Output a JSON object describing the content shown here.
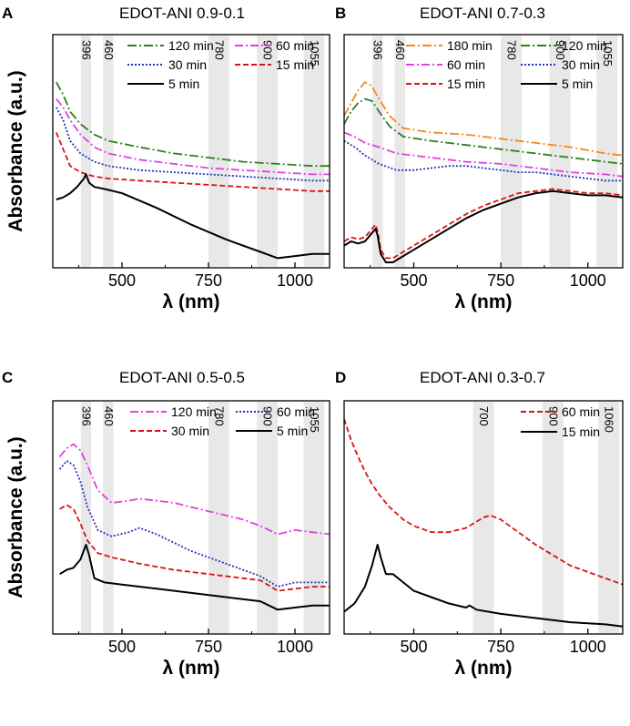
{
  "chart_data": [
    {
      "id": "A",
      "letter": "A",
      "title": "EDOT-ANI 0.9-0.1",
      "type": "line",
      "xlabel": "λ (nm)",
      "ylabel": "Absorbance (a.u.)",
      "xlim": [
        300,
        1100
      ],
      "ylim": [
        0,
        1
      ],
      "xticks": [
        500,
        750,
        1000
      ],
      "xtick_labels": [
        "500",
        "750",
        "1000"
      ],
      "bands": [
        {
          "label": "396",
          "x": 396,
          "w": 30
        },
        {
          "label": "460",
          "x": 460,
          "w": 30
        },
        {
          "label": "780",
          "x": 780,
          "w": 60
        },
        {
          "label": "900",
          "x": 920,
          "w": 60
        },
        {
          "label": "1055",
          "x": 1055,
          "w": 60
        }
      ],
      "series": [
        {
          "name": "120 min",
          "color": "#2e7d1e",
          "dash": "10,3,2,3",
          "x": [
            310,
            330,
            350,
            380,
            420,
            460,
            550,
            650,
            750,
            850,
            950,
            1050,
            1100
          ],
          "y": [
            0.86,
            0.8,
            0.72,
            0.66,
            0.61,
            0.58,
            0.55,
            0.52,
            0.5,
            0.48,
            0.47,
            0.46,
            0.46
          ]
        },
        {
          "name": "60 min",
          "color": "#e040e0",
          "dash": "9,3,2,3",
          "x": [
            310,
            330,
            350,
            380,
            420,
            460,
            550,
            650,
            750,
            850,
            950,
            1050,
            1100
          ],
          "y": [
            0.78,
            0.74,
            0.68,
            0.61,
            0.55,
            0.52,
            0.49,
            0.47,
            0.45,
            0.44,
            0.43,
            0.42,
            0.42
          ]
        },
        {
          "name": "30 min",
          "color": "#2233bb",
          "dash": "2,2",
          "x": [
            310,
            330,
            350,
            380,
            420,
            460,
            550,
            650,
            750,
            850,
            950,
            1050,
            1100
          ],
          "y": [
            0.74,
            0.68,
            0.58,
            0.52,
            0.48,
            0.46,
            0.44,
            0.43,
            0.42,
            0.41,
            0.4,
            0.39,
            0.39
          ]
        },
        {
          "name": "15 min",
          "color": "#dd1111",
          "dash": "6,3",
          "x": [
            310,
            330,
            350,
            380,
            420,
            460,
            550,
            650,
            750,
            850,
            950,
            1050,
            1100
          ],
          "y": [
            0.62,
            0.54,
            0.46,
            0.43,
            0.41,
            0.4,
            0.39,
            0.38,
            0.37,
            0.36,
            0.35,
            0.34,
            0.34
          ]
        },
        {
          "name": "5 min",
          "color": "#000000",
          "dash": "",
          "x": [
            310,
            330,
            350,
            370,
            390,
            396,
            405,
            420,
            450,
            500,
            600,
            700,
            800,
            900,
            950,
            1000,
            1050,
            1100
          ],
          "y": [
            0.3,
            0.31,
            0.33,
            0.36,
            0.4,
            0.42,
            0.38,
            0.36,
            0.35,
            0.33,
            0.26,
            0.18,
            0.11,
            0.05,
            0.02,
            0.03,
            0.04,
            0.04
          ]
        }
      ],
      "legend": [
        {
          "name": "120 min",
          "row": 0,
          "col": 0
        },
        {
          "name": "60 min",
          "row": 0,
          "col": 1
        },
        {
          "name": "30 min",
          "row": 1,
          "col": 0
        },
        {
          "name": "15 min",
          "row": 1,
          "col": 1
        },
        {
          "name": "5 min",
          "row": 2,
          "col": 0
        }
      ]
    },
    {
      "id": "B",
      "letter": "B",
      "title": "EDOT-ANI 0.7-0.3",
      "type": "line",
      "xlabel": "λ (nm)",
      "ylabel": "",
      "xlim": [
        300,
        1100
      ],
      "ylim": [
        0,
        1
      ],
      "xticks": [
        500,
        750,
        1000
      ],
      "xtick_labels": [
        "500",
        "750",
        "1000"
      ],
      "bands": [
        {
          "label": "396",
          "x": 396,
          "w": 30
        },
        {
          "label": "460",
          "x": 460,
          "w": 30
        },
        {
          "label": "780",
          "x": 780,
          "w": 60
        },
        {
          "label": "900",
          "x": 920,
          "w": 60
        },
        {
          "label": "1055",
          "x": 1055,
          "w": 60
        }
      ],
      "series": [
        {
          "name": "180 min",
          "color": "#f08a1a",
          "dash": "10,3,2,3",
          "x": [
            300,
            320,
            340,
            360,
            380,
            400,
            430,
            470,
            550,
            650,
            750,
            850,
            950,
            1050,
            1100
          ],
          "y": [
            0.7,
            0.76,
            0.82,
            0.86,
            0.84,
            0.78,
            0.7,
            0.64,
            0.62,
            0.61,
            0.59,
            0.57,
            0.55,
            0.52,
            0.51
          ]
        },
        {
          "name": "120 min",
          "color": "#2e7d1e",
          "dash": "10,3,2,3",
          "x": [
            300,
            320,
            340,
            360,
            380,
            400,
            430,
            470,
            550,
            650,
            750,
            850,
            950,
            1050,
            1100
          ],
          "y": [
            0.66,
            0.72,
            0.76,
            0.78,
            0.77,
            0.72,
            0.65,
            0.6,
            0.58,
            0.56,
            0.54,
            0.52,
            0.5,
            0.48,
            0.47
          ]
        },
        {
          "name": "60 min",
          "color": "#e040e0",
          "dash": "9,3,2,3",
          "x": [
            300,
            330,
            360,
            400,
            450,
            550,
            650,
            750,
            850,
            950,
            1050,
            1100
          ],
          "y": [
            0.62,
            0.6,
            0.57,
            0.55,
            0.52,
            0.5,
            0.48,
            0.47,
            0.45,
            0.43,
            0.42,
            0.41
          ]
        },
        {
          "name": "30 min",
          "color": "#2233bb",
          "dash": "2,2",
          "x": [
            300,
            330,
            360,
            400,
            450,
            500,
            550,
            600,
            650,
            700,
            750,
            800,
            850,
            900,
            950,
            1000,
            1050,
            1100
          ],
          "y": [
            0.58,
            0.55,
            0.51,
            0.47,
            0.44,
            0.44,
            0.45,
            0.46,
            0.46,
            0.45,
            0.44,
            0.43,
            0.43,
            0.42,
            0.41,
            0.4,
            0.39,
            0.39
          ]
        },
        {
          "name": "15 min",
          "color": "#dd1111",
          "dash": "6,3",
          "x": [
            300,
            320,
            340,
            360,
            380,
            390,
            396,
            405,
            420,
            440,
            460,
            500,
            550,
            600,
            650,
            700,
            750,
            800,
            850,
            900,
            950,
            1000,
            1050,
            1100
          ],
          "y": [
            0.1,
            0.12,
            0.11,
            0.12,
            0.16,
            0.18,
            0.15,
            0.06,
            0.02,
            0.02,
            0.04,
            0.08,
            0.13,
            0.18,
            0.23,
            0.27,
            0.3,
            0.33,
            0.34,
            0.35,
            0.34,
            0.33,
            0.33,
            0.32
          ]
        },
        {
          "name": "5 min",
          "color": "#000000",
          "dash": "",
          "x": [
            300,
            320,
            340,
            360,
            380,
            390,
            396,
            405,
            420,
            440,
            460,
            500,
            550,
            600,
            650,
            700,
            750,
            800,
            850,
            900,
            950,
            1000,
            1050,
            1100
          ],
          "y": [
            0.08,
            0.1,
            0.09,
            0.1,
            0.14,
            0.16,
            0.13,
            0.04,
            0.0,
            0.0,
            0.02,
            0.06,
            0.11,
            0.16,
            0.21,
            0.25,
            0.28,
            0.31,
            0.33,
            0.34,
            0.33,
            0.32,
            0.32,
            0.31
          ]
        }
      ],
      "legend": [
        {
          "name": "180 min",
          "row": 0,
          "col": 0
        },
        {
          "name": "120 min",
          "row": 0,
          "col": 1
        },
        {
          "name": "60 min",
          "row": 1,
          "col": 0
        },
        {
          "name": "30 min",
          "row": 1,
          "col": 1
        },
        {
          "name": "15 min",
          "row": 2,
          "col": 0
        },
        {
          "name": "5 min",
          "row": 2,
          "col": 1
        }
      ]
    },
    {
      "id": "C",
      "letter": "C",
      "title": "EDOT-ANI 0.5-0.5",
      "type": "line",
      "xlabel": "λ (nm)",
      "ylabel": "Absorbance (a.u.)",
      "xlim": [
        300,
        1100
      ],
      "ylim": [
        0,
        1
      ],
      "xticks": [
        500,
        750,
        1000
      ],
      "xtick_labels": [
        "500",
        "750",
        "1000"
      ],
      "bands": [
        {
          "label": "396",
          "x": 396,
          "w": 30
        },
        {
          "label": "460",
          "x": 460,
          "w": 30
        },
        {
          "label": "780",
          "x": 780,
          "w": 60
        },
        {
          "label": "900",
          "x": 920,
          "w": 60
        },
        {
          "label": "1055",
          "x": 1055,
          "w": 60
        }
      ],
      "series": [
        {
          "name": "120 min",
          "color": "#e040e0",
          "dash": "9,3,2,3",
          "x": [
            320,
            340,
            360,
            380,
            400,
            430,
            470,
            520,
            550,
            600,
            650,
            700,
            750,
            800,
            850,
            900,
            950,
            1000,
            1050,
            1100
          ],
          "y": [
            0.82,
            0.86,
            0.88,
            0.85,
            0.78,
            0.66,
            0.6,
            0.61,
            0.62,
            0.61,
            0.6,
            0.58,
            0.56,
            0.54,
            0.52,
            0.49,
            0.45,
            0.47,
            0.46,
            0.45
          ]
        },
        {
          "name": "60 min",
          "color": "#2233bb",
          "dash": "2,2",
          "x": [
            320,
            340,
            360,
            380,
            400,
            430,
            470,
            520,
            550,
            600,
            650,
            700,
            750,
            800,
            850,
            900,
            950,
            1000,
            1050,
            1100
          ],
          "y": [
            0.76,
            0.8,
            0.78,
            0.7,
            0.58,
            0.47,
            0.44,
            0.46,
            0.48,
            0.45,
            0.41,
            0.37,
            0.34,
            0.31,
            0.28,
            0.25,
            0.2,
            0.22,
            0.22,
            0.22
          ]
        },
        {
          "name": "30 min",
          "color": "#dd1111",
          "dash": "6,3",
          "x": [
            320,
            340,
            360,
            380,
            400,
            430,
            470,
            550,
            650,
            750,
            850,
            900,
            950,
            1000,
            1050,
            1100
          ],
          "y": [
            0.57,
            0.59,
            0.57,
            0.5,
            0.42,
            0.36,
            0.34,
            0.31,
            0.28,
            0.26,
            0.24,
            0.23,
            0.18,
            0.19,
            0.2,
            0.2
          ]
        },
        {
          "name": "5 min",
          "color": "#000000",
          "dash": "",
          "x": [
            320,
            340,
            360,
            380,
            396,
            405,
            420,
            450,
            500,
            600,
            700,
            800,
            900,
            950,
            1000,
            1050,
            1100
          ],
          "y": [
            0.26,
            0.28,
            0.29,
            0.33,
            0.4,
            0.35,
            0.24,
            0.22,
            0.21,
            0.19,
            0.17,
            0.15,
            0.13,
            0.09,
            0.1,
            0.11,
            0.11
          ]
        }
      ],
      "legend": [
        {
          "name": "120 min",
          "row": 0,
          "col": 0
        },
        {
          "name": "60 min",
          "row": 0,
          "col": 1
        },
        {
          "name": "30 min",
          "row": 1,
          "col": 0
        },
        {
          "name": "5 min",
          "row": 1,
          "col": 1
        }
      ]
    },
    {
      "id": "D",
      "letter": "D",
      "title": "EDOT-ANI 0.3-0.7",
      "type": "line",
      "xlabel": "λ (nm)",
      "ylabel": "",
      "xlim": [
        300,
        1100
      ],
      "ylim": [
        0,
        1
      ],
      "xticks": [
        500,
        750,
        1000
      ],
      "xtick_labels": [
        "500",
        "750",
        "1000"
      ],
      "bands": [
        {
          "label": "700",
          "x": 700,
          "w": 60
        },
        {
          "label": "900",
          "x": 900,
          "w": 60
        },
        {
          "label": "1060",
          "x": 1060,
          "w": 60
        }
      ],
      "series": [
        {
          "name": "60 min",
          "color": "#dd1111",
          "dash": "6,3",
          "x": [
            300,
            320,
            340,
            360,
            380,
            400,
            430,
            470,
            500,
            550,
            600,
            650,
            700,
            720,
            750,
            800,
            850,
            900,
            950,
            1000,
            1050,
            1100
          ],
          "y": [
            1.0,
            0.9,
            0.82,
            0.75,
            0.69,
            0.64,
            0.58,
            0.52,
            0.49,
            0.46,
            0.46,
            0.48,
            0.53,
            0.54,
            0.52,
            0.46,
            0.4,
            0.35,
            0.3,
            0.27,
            0.24,
            0.21
          ]
        },
        {
          "name": "15 min",
          "color": "#000000",
          "dash": "",
          "x": [
            300,
            330,
            360,
            380,
            396,
            405,
            420,
            440,
            470,
            500,
            550,
            600,
            650,
            660,
            680,
            750,
            850,
            950,
            1050,
            1100
          ],
          "y": [
            0.08,
            0.12,
            0.2,
            0.3,
            0.4,
            0.34,
            0.26,
            0.26,
            0.22,
            0.18,
            0.15,
            0.12,
            0.1,
            0.11,
            0.09,
            0.07,
            0.05,
            0.03,
            0.02,
            0.01
          ]
        }
      ],
      "legend": [
        {
          "name": "60 min",
          "row": 0,
          "col": 0
        },
        {
          "name": "15 min",
          "row": 1,
          "col": 0
        }
      ]
    }
  ]
}
